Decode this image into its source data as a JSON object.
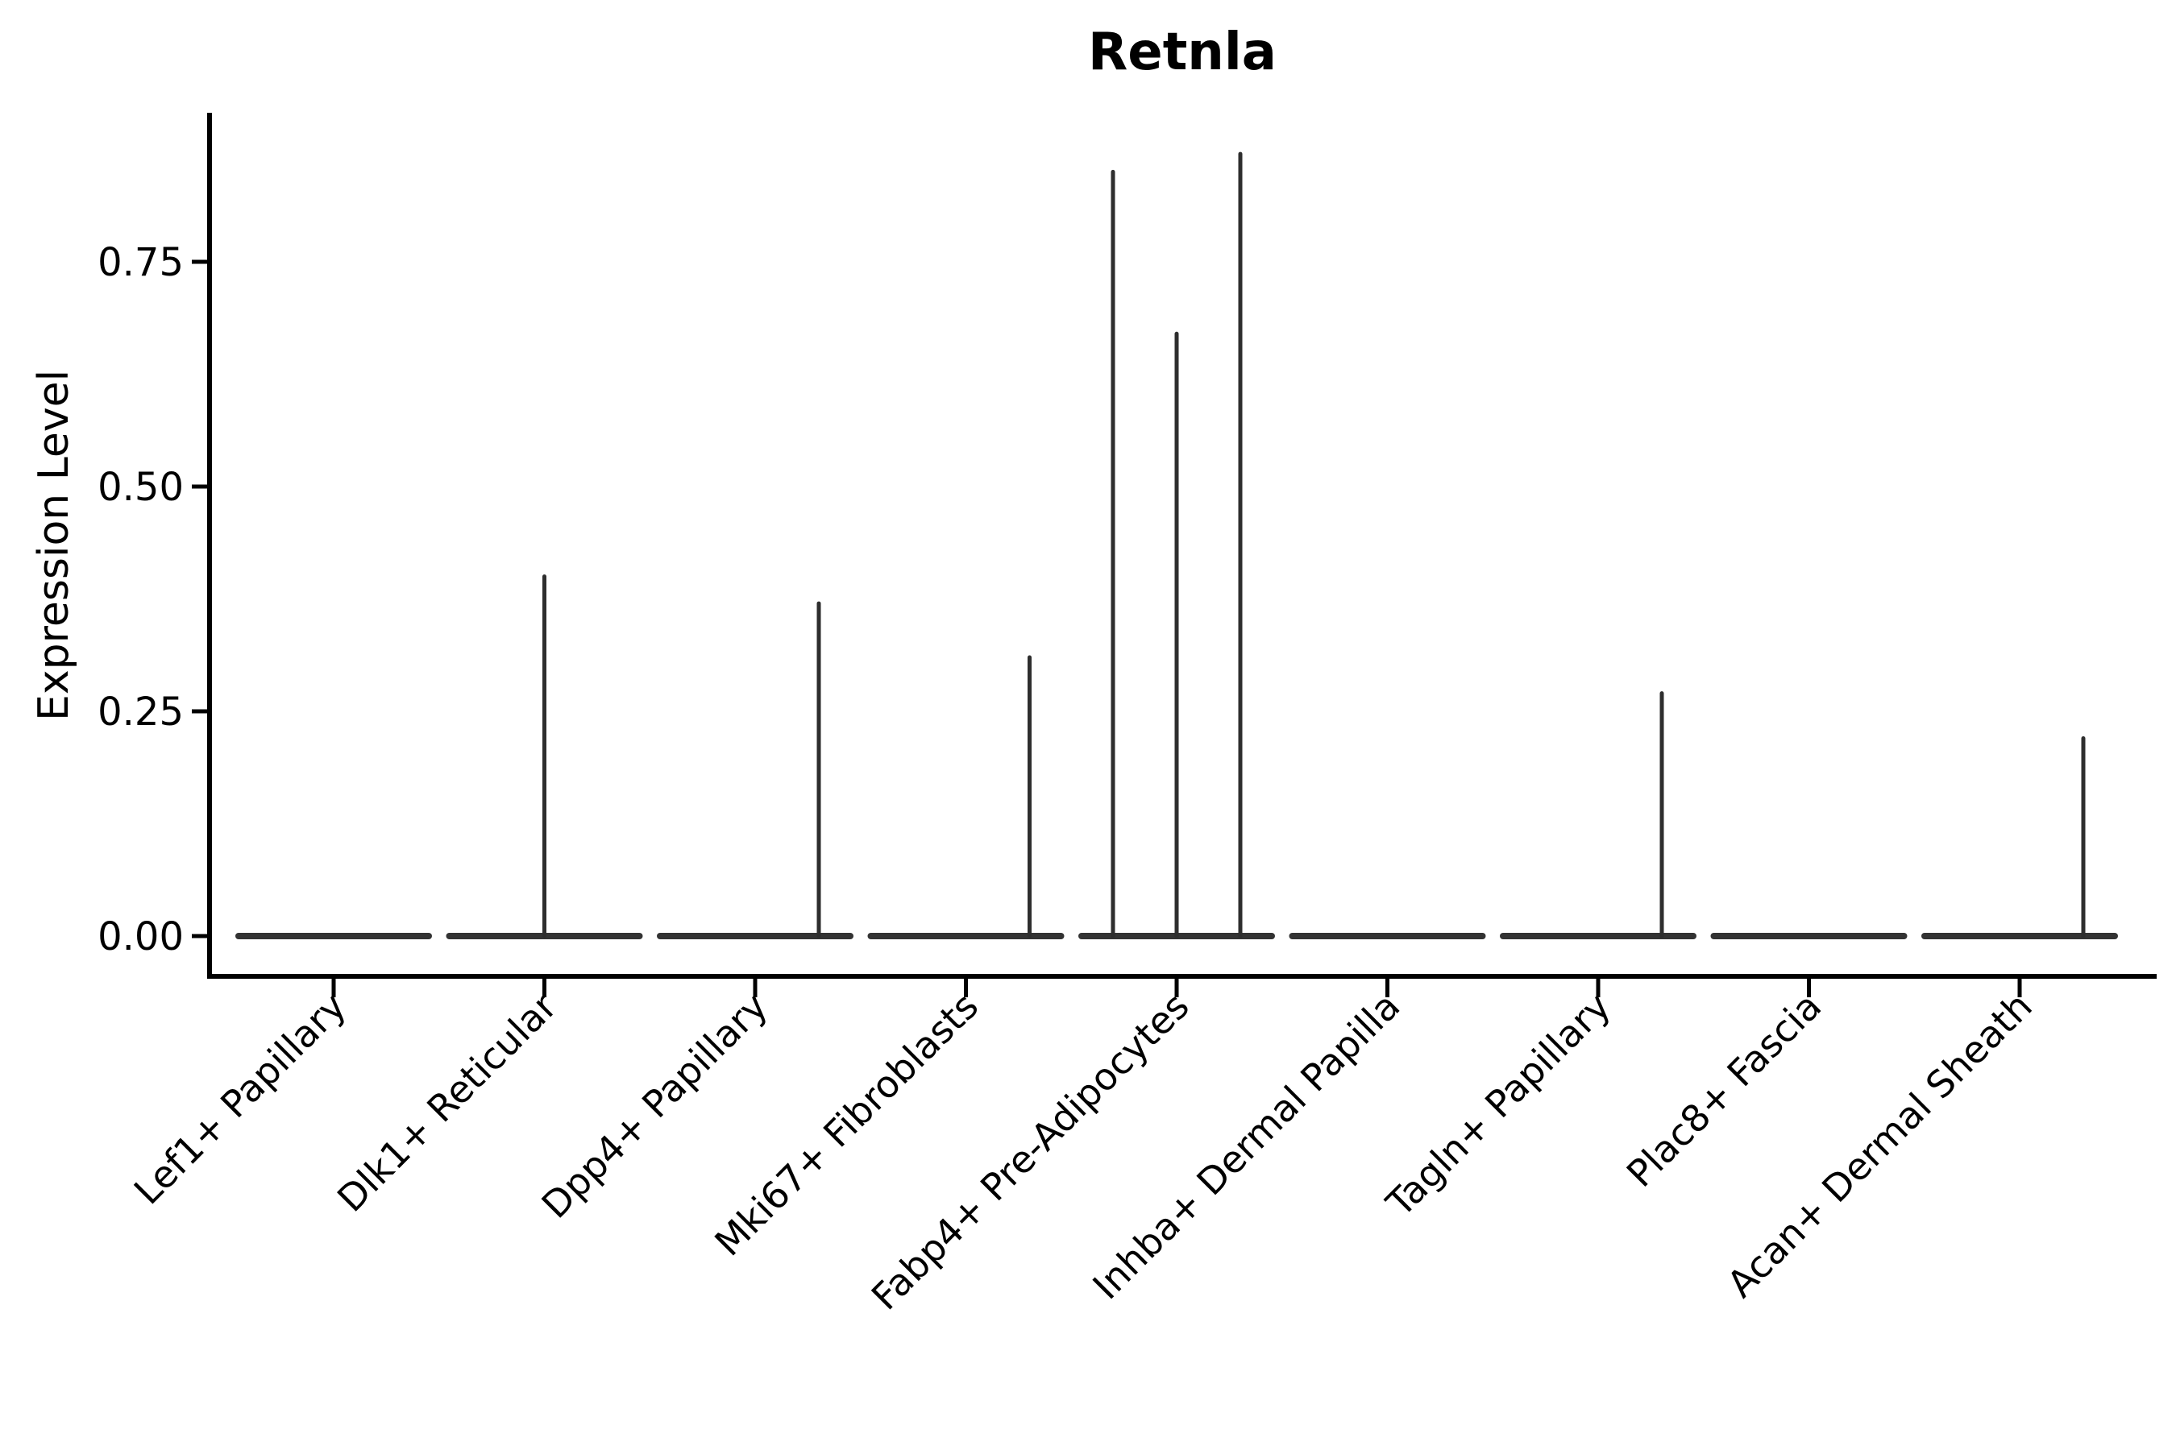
{
  "chart_data": {
    "type": "violin",
    "title": "Retnla",
    "xlabel": "",
    "ylabel": "Expression Level",
    "ytick_labels": [
      "0.00",
      "0.25",
      "0.50",
      "0.75"
    ],
    "ytick_values": [
      0,
      0.25,
      0.5,
      0.75
    ],
    "ylim": [
      0,
      0.91
    ],
    "grid": false,
    "legend": "none",
    "categories": [
      "Lef1+ Papillary",
      "Dlk1+ Reticular",
      "Dpp4+ Papillary",
      "Mki67+ Fibroblasts",
      "Fabp4+ Pre-Adipocytes",
      "Inhba+ Dermal Papilla",
      "Tagln+ Papillary",
      "Plac8+ Fascia",
      "Acan+ Dermal Sheath"
    ],
    "violins": [
      {
        "category": "Lef1+ Papillary",
        "baseline": 0,
        "spikes": []
      },
      {
        "category": "Dlk1+ Reticular",
        "baseline": 0,
        "spikes": [
          {
            "slot": 0,
            "max": 0.4
          }
        ]
      },
      {
        "category": "Dpp4+ Papillary",
        "baseline": 0,
        "spikes": [
          {
            "slot": 1,
            "max": 0.37
          }
        ]
      },
      {
        "category": "Mki67+ Fibroblasts",
        "baseline": 0,
        "spikes": [
          {
            "slot": 1,
            "max": 0.31
          }
        ]
      },
      {
        "category": "Fabp4+ Pre-Adipocytes",
        "baseline": 0,
        "spikes": [
          {
            "slot": -1,
            "max": 0.85
          },
          {
            "slot": 0,
            "max": 0.67
          },
          {
            "slot": 1,
            "max": 0.87
          }
        ]
      },
      {
        "category": "Inhba+ Dermal Papilla",
        "baseline": 0,
        "spikes": []
      },
      {
        "category": "Tagln+ Papillary",
        "baseline": 0,
        "spikes": [
          {
            "slot": 1,
            "max": 0.27
          }
        ]
      },
      {
        "category": "Plac8+ Fascia",
        "baseline": 0,
        "spikes": []
      },
      {
        "category": "Acan+ Dermal Sheath",
        "baseline": 0,
        "spikes": [
          {
            "slot": 1,
            "max": 0.22
          }
        ]
      }
    ],
    "colors": {
      "violin_line": "#333333",
      "spike_line": "#2e2e2e",
      "axis": "#000000",
      "text": "#000000",
      "background": "#ffffff"
    }
  }
}
